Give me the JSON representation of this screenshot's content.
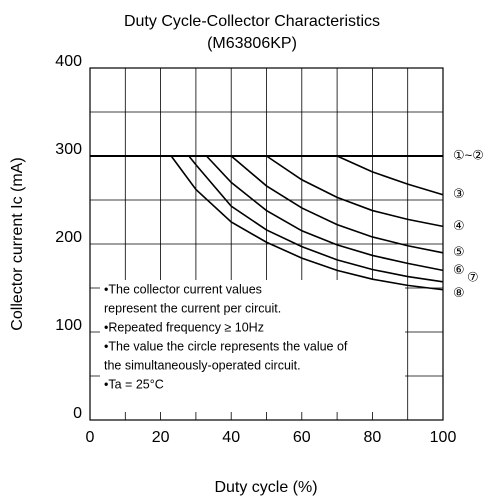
{
  "chart_data": {
    "type": "line",
    "title": "Duty Cycle-Collector Characteristics",
    "subtitle": "(M63806KP)",
    "x_label": "Duty cycle (%)",
    "y_label": "Collector current  Ic (mA)",
    "xlim": [
      0,
      100
    ],
    "ylim": [
      0,
      400
    ],
    "xticks": [
      0,
      20,
      40,
      60,
      80,
      100
    ],
    "yticks": [
      0,
      100,
      200,
      300,
      400
    ],
    "xminor": [
      10,
      30,
      50,
      70,
      90
    ],
    "yminor": [
      50,
      150,
      250,
      350
    ],
    "grid": true,
    "series": [
      {
        "name": "①~②",
        "color": "#000000",
        "x": [
          0,
          100
        ],
        "values": [
          300,
          300
        ]
      },
      {
        "name": "③",
        "color": "#000000",
        "x": [
          70,
          80,
          90,
          100
        ],
        "values": [
          300,
          282,
          268,
          256
        ]
      },
      {
        "name": "④",
        "color": "#000000",
        "x": [
          50,
          60,
          70,
          80,
          90,
          100
        ],
        "values": [
          300,
          273,
          253,
          238,
          228,
          220
        ]
      },
      {
        "name": "⑤",
        "color": "#000000",
        "x": [
          40,
          50,
          60,
          70,
          80,
          90,
          100
        ],
        "values": [
          300,
          266,
          241,
          222,
          208,
          198,
          190
        ]
      },
      {
        "name": "⑥",
        "color": "#000000",
        "x": [
          33,
          40,
          50,
          60,
          70,
          80,
          90,
          100
        ],
        "values": [
          300,
          270,
          238,
          215,
          199,
          187,
          178,
          170
        ]
      },
      {
        "name": "⑦",
        "color": "#000000",
        "x": [
          28,
          30,
          40,
          50,
          60,
          70,
          80,
          90,
          100
        ],
        "values": [
          300,
          290,
          243,
          216,
          197,
          182,
          171,
          163,
          157
        ]
      },
      {
        "name": "⑧",
        "color": "#000000",
        "x": [
          23,
          30,
          40,
          50,
          60,
          70,
          80,
          90,
          100
        ],
        "values": [
          300,
          262,
          225,
          202,
          184,
          170,
          160,
          153,
          148
        ]
      }
    ],
    "annotations": [
      "•The collector current values",
      " represent the current per circuit.",
      "•Repeated frequency  ≥ 10Hz",
      "•The value the circle represents the value of",
      " the simultaneously-operated circuit.",
      "•Ta = 25°C"
    ]
  }
}
